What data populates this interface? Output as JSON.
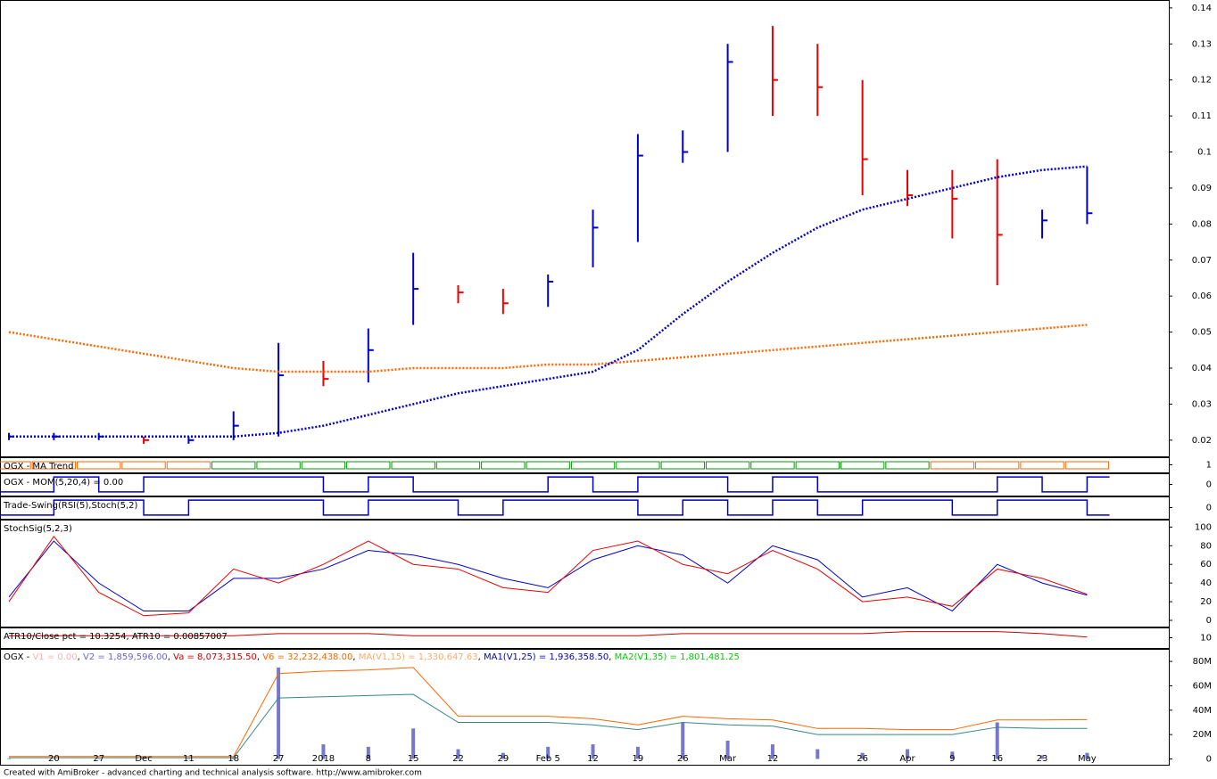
{
  "footer": "Created with AmiBroker - advanced charting and technical analysis software. http://www.amibroker.com",
  "chart_data": [
    {
      "type": "ohlc",
      "ylim": [
        0.0155,
        0.1422
      ],
      "yticks": [
        0.02,
        0.03,
        0.04,
        0.05,
        0.06,
        0.07,
        0.08,
        0.09,
        0.1,
        0.11,
        0.12,
        0.13,
        0.14
      ],
      "up_color": "#0000cc",
      "down_color": "#ee0000",
      "high": [
        0.022,
        0.022,
        0.022,
        0.021,
        0.021,
        0.028,
        0.047,
        0.042,
        0.051,
        0.072,
        0.063,
        0.062,
        0.066,
        0.084,
        0.105,
        0.106,
        0.13,
        0.135,
        0.13,
        0.12,
        0.095,
        0.095,
        0.098,
        0.084,
        0.096
      ],
      "low": [
        0.02,
        0.02,
        0.02,
        0.019,
        0.019,
        0.02,
        0.021,
        0.035,
        0.036,
        0.052,
        0.058,
        0.055,
        0.057,
        0.068,
        0.075,
        0.097,
        0.1,
        0.11,
        0.11,
        0.088,
        0.085,
        0.076,
        0.063,
        0.076,
        0.08
      ],
      "close": [
        0.021,
        0.021,
        0.021,
        0.02,
        0.02,
        0.024,
        0.038,
        0.037,
        0.045,
        0.062,
        0.061,
        0.058,
        0.064,
        0.079,
        0.099,
        0.1,
        0.125,
        0.12,
        0.118,
        0.098,
        0.088,
        0.087,
        0.077,
        0.081,
        0.083
      ],
      "lines": [
        {
          "color": "#ff6600",
          "values": [
            0.05,
            0.048,
            0.046,
            0.044,
            0.042,
            0.04,
            0.039,
            0.039,
            0.039,
            0.04,
            0.04,
            0.04,
            0.041,
            0.041,
            0.042,
            0.043,
            0.044,
            0.045,
            0.046,
            0.047,
            0.048,
            0.049,
            0.05,
            0.051,
            0.052
          ]
        },
        {
          "color": "#0000cc",
          "values": [
            0.021,
            0.021,
            0.021,
            0.021,
            0.021,
            0.021,
            0.022,
            0.024,
            0.027,
            0.03,
            0.033,
            0.035,
            0.037,
            0.039,
            0.045,
            0.055,
            0.064,
            0.072,
            0.079,
            0.084,
            0.087,
            0.09,
            0.093,
            0.095,
            0.096
          ]
        }
      ]
    },
    {
      "type": "strip",
      "title": "OGX - MA Trend",
      "yticks": [
        1
      ],
      "colors": [
        "#ff6600",
        "#009900"
      ],
      "values": [
        0,
        0,
        0,
        0,
        0,
        1,
        1,
        1,
        1,
        1,
        1,
        1,
        1,
        1,
        1,
        1,
        1,
        1,
        1,
        1,
        1,
        0,
        0,
        0,
        0
      ]
    },
    {
      "type": "step",
      "title": "OGX - MOM(5,20,4) = 0.00",
      "ylim": [
        -1.5,
        1.5
      ],
      "yticks": [
        0
      ],
      "color": "#0000cc",
      "values": [
        -1,
        1,
        -1,
        1,
        1,
        1,
        1,
        -1,
        1,
        -1,
        -1,
        -1,
        1,
        -1,
        1,
        1,
        -1,
        1,
        -1,
        -1,
        -1,
        -1,
        1,
        -1,
        1
      ]
    },
    {
      "type": "step",
      "title": "Trade-Swing(RSI(5),Stoch(5,2)",
      "ylim": [
        -1.5,
        1.5
      ],
      "yticks": [
        0
      ],
      "color": "#0000cc",
      "values": [
        -1,
        1,
        1,
        -1,
        1,
        1,
        1,
        -1,
        1,
        1,
        -1,
        1,
        1,
        1,
        -1,
        1,
        -1,
        1,
        -1,
        1,
        1,
        -1,
        1,
        1,
        -1
      ]
    },
    {
      "type": "line",
      "title": "StochSig(5,2,3)",
      "ylim": [
        -6.7,
        108
      ],
      "yticks": [
        0,
        20,
        40,
        60,
        80,
        100
      ],
      "series": [
        {
          "color": "#0000cc",
          "values": [
            25,
            85,
            40,
            10,
            10,
            45,
            45,
            55,
            75,
            70,
            60,
            45,
            35,
            65,
            80,
            70,
            40,
            80,
            65,
            25,
            35,
            10,
            60,
            40,
            27
          ]
        },
        {
          "color": "#ee0000",
          "values": [
            20,
            90,
            30,
            5,
            8,
            55,
            40,
            60,
            85,
            60,
            55,
            35,
            30,
            75,
            85,
            60,
            50,
            75,
            55,
            20,
            25,
            15,
            55,
            45,
            28
          ]
        }
      ]
    },
    {
      "type": "line",
      "title": "ATR10/Close pct = 10.3254, ATR10 = 0.00857007",
      "ylim": [
        5,
        15
      ],
      "yticks": [
        10
      ],
      "series": [
        {
          "color": "#cc0000",
          "values": [
            11,
            11,
            11,
            11,
            11,
            11,
            12,
            12,
            12,
            11,
            11,
            11,
            11,
            11,
            11,
            12,
            12,
            12,
            12,
            12,
            13,
            13,
            13,
            12,
            10.3254
          ]
        }
      ]
    },
    {
      "type": "bar",
      "prefix": "OGX - ",
      "label_parts": [
        {
          "text": "V1 = 0.00",
          "color": "#ffb0b0"
        },
        {
          "text": "V2 = 1,859,596.00",
          "color": "#6666cc"
        },
        {
          "text": "Va = 8,073,315.50",
          "color": "#cc0000"
        },
        {
          "text": "V6 = 32,232,438.00",
          "color": "#ff6600"
        },
        {
          "text": "MA(V1,15) = 1,330,647.63",
          "color": "#ffaa66"
        },
        {
          "text": "MA1(V1,25) = 1,936,358.50",
          "color": "#0000cc"
        },
        {
          "text": "MA2(V1,35) = 1,801,481.25",
          "color": "#00cc00"
        }
      ],
      "ylim": [
        -4750000,
        90300000
      ],
      "yticks": [
        0,
        {
          "value": 20000000,
          "label": "20M"
        },
        {
          "value": 40000000,
          "label": "40M"
        },
        {
          "value": 60000000,
          "label": "60M"
        },
        {
          "value": 80000000,
          "label": "80M"
        }
      ],
      "color": "#7777cc",
      "values": [
        500000,
        300000,
        400000,
        300000,
        500000,
        1000000,
        75000000,
        12000000,
        10000000,
        25000000,
        8000000,
        5000000,
        10000000,
        12000000,
        10000000,
        30000000,
        15000000,
        12000000,
        8000000,
        5000000,
        8000000,
        6000000,
        30000000,
        3000000,
        5000000
      ],
      "lines": [
        {
          "color": "#ff6600",
          "values": [
            2000000,
            2000000,
            2000000,
            2000000,
            2000000,
            2000000,
            70000000,
            72000000,
            73000000,
            75000000,
            35000000,
            35000000,
            35000000,
            33000000,
            28000000,
            35000000,
            33000000,
            32000000,
            25000000,
            25000000,
            24000000,
            24000000,
            32000000,
            32000000,
            32232438
          ]
        },
        {
          "color": "#338888",
          "values": [
            1000000,
            1000000,
            1000000,
            1000000,
            1000000,
            1000000,
            50000000,
            51000000,
            52000000,
            53000000,
            30000000,
            30000000,
            30000000,
            28000000,
            24000000,
            30000000,
            28000000,
            27000000,
            20000000,
            20000000,
            20000000,
            20000000,
            26000000,
            25000000,
            25000000
          ]
        }
      ],
      "categories": [
        null,
        "20",
        "27",
        "Dec",
        "11",
        "18",
        "27",
        "2018",
        "8",
        "15",
        "22",
        "29",
        "Feb 5",
        "12",
        "19",
        "26",
        "Mar",
        "12",
        null,
        "26",
        "Apr",
        "9",
        "16",
        "23",
        "May"
      ]
    }
  ]
}
